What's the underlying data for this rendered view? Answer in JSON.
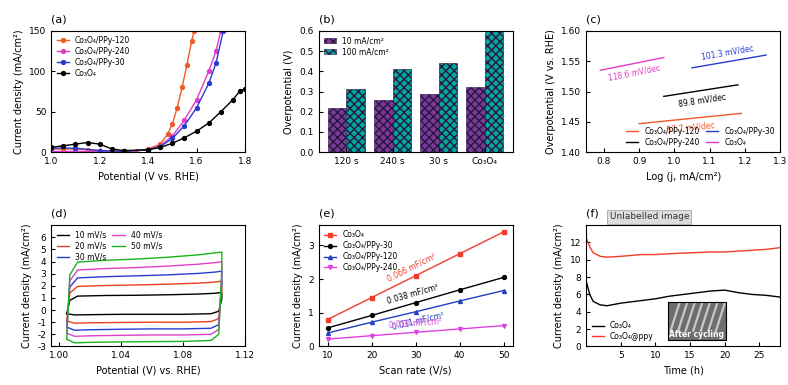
{
  "chart_data": [
    {
      "type": "line",
      "title": "(a)",
      "x_label": "Potential (V vs. RHE)",
      "y_label": "Current density (mA/cm²)",
      "xlim": [
        1.0,
        1.8
      ],
      "xticks": [
        1.0,
        1.2,
        1.4,
        1.6,
        1.8
      ],
      "ylim": [
        0,
        150
      ],
      "yticks": [
        0,
        50,
        100,
        150
      ],
      "legend": "upper left",
      "series": [
        {
          "name": "Co₃O₄/PPy-120",
          "color": "#f05a28",
          "marker": "circle",
          "x": [
            1.0,
            1.05,
            1.1,
            1.15,
            1.2,
            1.25,
            1.3,
            1.35,
            1.4,
            1.45,
            1.48,
            1.5,
            1.52,
            1.54,
            1.56,
            1.58,
            1.59
          ],
          "values": [
            4,
            4,
            4,
            3,
            2,
            1,
            1,
            2,
            4,
            10,
            22,
            35,
            55,
            80,
            108,
            138,
            150
          ]
        },
        {
          "name": "Co₃O₄/PPy-240",
          "color": "#e03cc8",
          "marker": "circle",
          "x": [
            1.0,
            1.1,
            1.2,
            1.3,
            1.4,
            1.45,
            1.5,
            1.55,
            1.6,
            1.65,
            1.68,
            1.7
          ],
          "values": [
            1,
            1,
            1,
            1,
            3,
            8,
            20,
            40,
            65,
            100,
            125,
            150
          ]
        },
        {
          "name": "Co₃O₄/PPy-30",
          "color": "#2a3bd0",
          "marker": "circle",
          "x": [
            1.0,
            1.1,
            1.2,
            1.3,
            1.4,
            1.45,
            1.5,
            1.55,
            1.6,
            1.65,
            1.68,
            1.71
          ],
          "values": [
            5,
            5,
            2,
            1,
            3,
            7,
            17,
            33,
            55,
            85,
            110,
            150
          ]
        },
        {
          "name": "Co₃O₄",
          "color": "#000000",
          "marker": "circle",
          "x": [
            1.0,
            1.05,
            1.1,
            1.15,
            1.2,
            1.25,
            1.3,
            1.4,
            1.45,
            1.5,
            1.55,
            1.6,
            1.65,
            1.7,
            1.75,
            1.78,
            1.8
          ],
          "values": [
            6,
            8,
            10,
            12,
            10,
            4,
            2,
            3,
            6,
            11,
            18,
            26,
            36,
            50,
            65,
            76,
            78
          ]
        }
      ]
    },
    {
      "type": "bar",
      "title": "(b)",
      "y_label": "Overpotential (V)",
      "categories": [
        "120 s",
        "240 s",
        "30 s",
        "Co₃O₄"
      ],
      "ylim": [
        0,
        0.6
      ],
      "yticks": [
        0.0,
        0.1,
        0.2,
        0.3,
        0.4,
        0.5,
        0.6
      ],
      "legend": "upper left",
      "series": [
        {
          "name": "10 mA/cm²",
          "color": "#7a3a9a",
          "values": [
            0.22,
            0.26,
            0.29,
            0.32
          ]
        },
        {
          "name": "100 mA/cm²",
          "color": "#00a99d",
          "values": [
            0.31,
            0.41,
            0.44,
            0.6
          ]
        }
      ]
    },
    {
      "type": "line",
      "title": "(c)",
      "x_label": "Log (j, mA/cm²)",
      "y_label": "Overpotential (V vs. RHE)",
      "xlim": [
        0.75,
        1.3
      ],
      "xticks": [
        0.8,
        0.9,
        1.0,
        1.1,
        1.2,
        1.3
      ],
      "ylim": [
        1.4,
        1.6
      ],
      "yticks": [
        {
          "value": 1.4,
          "label": "1.40"
        },
        1.45,
        {
          "value": 1.5,
          "label": "1.50"
        },
        1.55,
        {
          "value": 1.6,
          "label": "1.60"
        }
      ],
      "legend": "lower right",
      "series": [
        {
          "name": "Co₃O₄/PPy-120",
          "color": "#f05a28",
          "x": [
            0.9,
            1.19
          ],
          "values": [
            1.447,
            1.464
          ],
          "annotation": "57.7 mV/dec"
        },
        {
          "name": "Co₃O₄/PPy-240",
          "color": "#000000",
          "x": [
            0.97,
            1.18
          ],
          "values": [
            1.492,
            1.511
          ],
          "annotation": "89.8 mV/dec"
        },
        {
          "name": "Co₃O₄/PPy-30",
          "color": "#2a3bd0",
          "x": [
            1.05,
            1.26
          ],
          "values": [
            1.539,
            1.56
          ],
          "annotation": "101.3 mV/dec"
        },
        {
          "name": "Co₃O₄",
          "color": "#e03cc8",
          "x": [
            0.79,
            0.97
          ],
          "values": [
            1.535,
            1.556
          ],
          "annotation": "118.6 mV/dec"
        }
      ]
    },
    {
      "type": "line",
      "title": "(d)",
      "x_label": "Potential (V) vs. RHE)",
      "y_label": "Current density (mA/cm²)",
      "xlim": [
        0.995,
        1.12
      ],
      "xticks": [
        {
          "value": 1.0,
          "label": "1.00"
        },
        1.04,
        1.08,
        1.12
      ],
      "ylim": [
        -3,
        7
      ],
      "yticks": [
        -3,
        -2,
        -1,
        0,
        1,
        2,
        3,
        4,
        5,
        6
      ],
      "legend": "upper left",
      "x": [
        1.005,
        1.007,
        1.012,
        1.03,
        1.05,
        1.07,
        1.09,
        1.1,
        1.105,
        1.105,
        1.103,
        1.098,
        1.08,
        1.06,
        1.04,
        1.02,
        1.01,
        1.005
      ],
      "series": [
        {
          "name": "10 mV/s",
          "color": "#000000",
          "values": [
            -0.3,
            0.8,
            1.15,
            1.2,
            1.22,
            1.26,
            1.32,
            1.38,
            1.45,
            0.9,
            -0.1,
            -0.3,
            -0.35,
            -0.35,
            -0.35,
            -0.38,
            -0.4,
            -0.3
          ]
        },
        {
          "name": "20 mV/s",
          "color": "#e8401c",
          "values": [
            -0.9,
            1.4,
            1.95,
            2.02,
            2.07,
            2.13,
            2.22,
            2.3,
            2.38,
            1.6,
            -0.7,
            -0.95,
            -1.0,
            -1.0,
            -1.02,
            -1.05,
            -1.08,
            -0.9
          ]
        },
        {
          "name": "30 mV/s",
          "color": "#2a3bd0",
          "values": [
            -1.4,
            1.9,
            2.65,
            2.75,
            2.82,
            2.9,
            3.02,
            3.12,
            3.2,
            2.2,
            -1.2,
            -1.5,
            -1.55,
            -1.55,
            -1.58,
            -1.62,
            -1.66,
            -1.4
          ]
        },
        {
          "name": "40 mV/s",
          "color": "#e040c8",
          "values": [
            -1.9,
            2.4,
            3.3,
            3.42,
            3.5,
            3.62,
            3.78,
            3.9,
            3.98,
            2.8,
            -1.6,
            -2.0,
            -2.05,
            -2.05,
            -2.08,
            -2.12,
            -2.16,
            -1.9
          ]
        },
        {
          "name": "50 mV/s",
          "color": "#19b319",
          "values": [
            -2.4,
            2.9,
            3.95,
            4.1,
            4.2,
            4.35,
            4.55,
            4.7,
            4.78,
            3.4,
            -2.0,
            -2.5,
            -2.58,
            -2.6,
            -2.62,
            -2.66,
            -2.7,
            -2.4
          ]
        }
      ]
    },
    {
      "type": "line",
      "title": "(e)",
      "x_label": "Scan rate (V/s)",
      "y_label": "Current density (mA/cm²)",
      "xlim": [
        8,
        52
      ],
      "xticks": [
        10,
        20,
        30,
        40,
        50
      ],
      "ylim": [
        0,
        3.6
      ],
      "yticks": [
        0,
        1,
        2,
        3
      ],
      "legend": "upper left",
      "x": [
        10,
        20,
        30,
        40,
        50
      ],
      "series": [
        {
          "name": "Co₃O₄",
          "color": "#f03c28",
          "marker": "square",
          "values": [
            0.8,
            1.45,
            2.1,
            2.75,
            3.4
          ],
          "annotation": "0.066 mF/cm²"
        },
        {
          "name": "Co₃O₄/PPy-30",
          "color": "#000000",
          "marker": "circle",
          "values": [
            0.55,
            0.92,
            1.3,
            1.68,
            2.05
          ],
          "annotation": "0.038 mF/cm²"
        },
        {
          "name": "Co₃O₄/PPy-120",
          "color": "#2040c0",
          "marker": "triangle_up",
          "values": [
            0.4,
            0.72,
            1.03,
            1.35,
            1.66
          ],
          "annotation": "0.031 mF/cm²"
        },
        {
          "name": "Co₃O₄/PPy-240",
          "color": "#e040e0",
          "marker": "triangle_down",
          "values": [
            0.22,
            0.32,
            0.42,
            0.52,
            0.62
          ],
          "annotation": "0.010 mF/cm²"
        }
      ]
    },
    {
      "type": "line",
      "title": "(f)",
      "x_label": "Time (h)",
      "y_label": "Current density (mA/cm²)",
      "xlim": [
        0,
        28
      ],
      "xticks": [
        5,
        10,
        15,
        20,
        25
      ],
      "ylim": [
        0,
        14
      ],
      "yticks": [
        0,
        2,
        4,
        6,
        8,
        10,
        12
      ],
      "legend": "lower left",
      "inset_label": "After cycling",
      "overlay_label": "Unlabelled image",
      "x": [
        0,
        0.5,
        1,
        2,
        3,
        5,
        8,
        10,
        12,
        15,
        18,
        20,
        22,
        24,
        26,
        28
      ],
      "series": [
        {
          "name": "Co₃O₄",
          "color": "#000000",
          "values": [
            7.5,
            6,
            5.2,
            4.8,
            4.7,
            5.0,
            5.3,
            5.5,
            5.8,
            6.1,
            6.4,
            6.5,
            6.2,
            6.0,
            5.9,
            5.7
          ]
        },
        {
          "name": "Co₃O₄@ppy",
          "color": "#f03c28",
          "values": [
            12.5,
            11.5,
            10.8,
            10.4,
            10.3,
            10.4,
            10.6,
            10.6,
            10.7,
            10.8,
            10.9,
            10.9,
            11.0,
            11.1,
            11.2,
            11.4
          ]
        }
      ]
    }
  ]
}
